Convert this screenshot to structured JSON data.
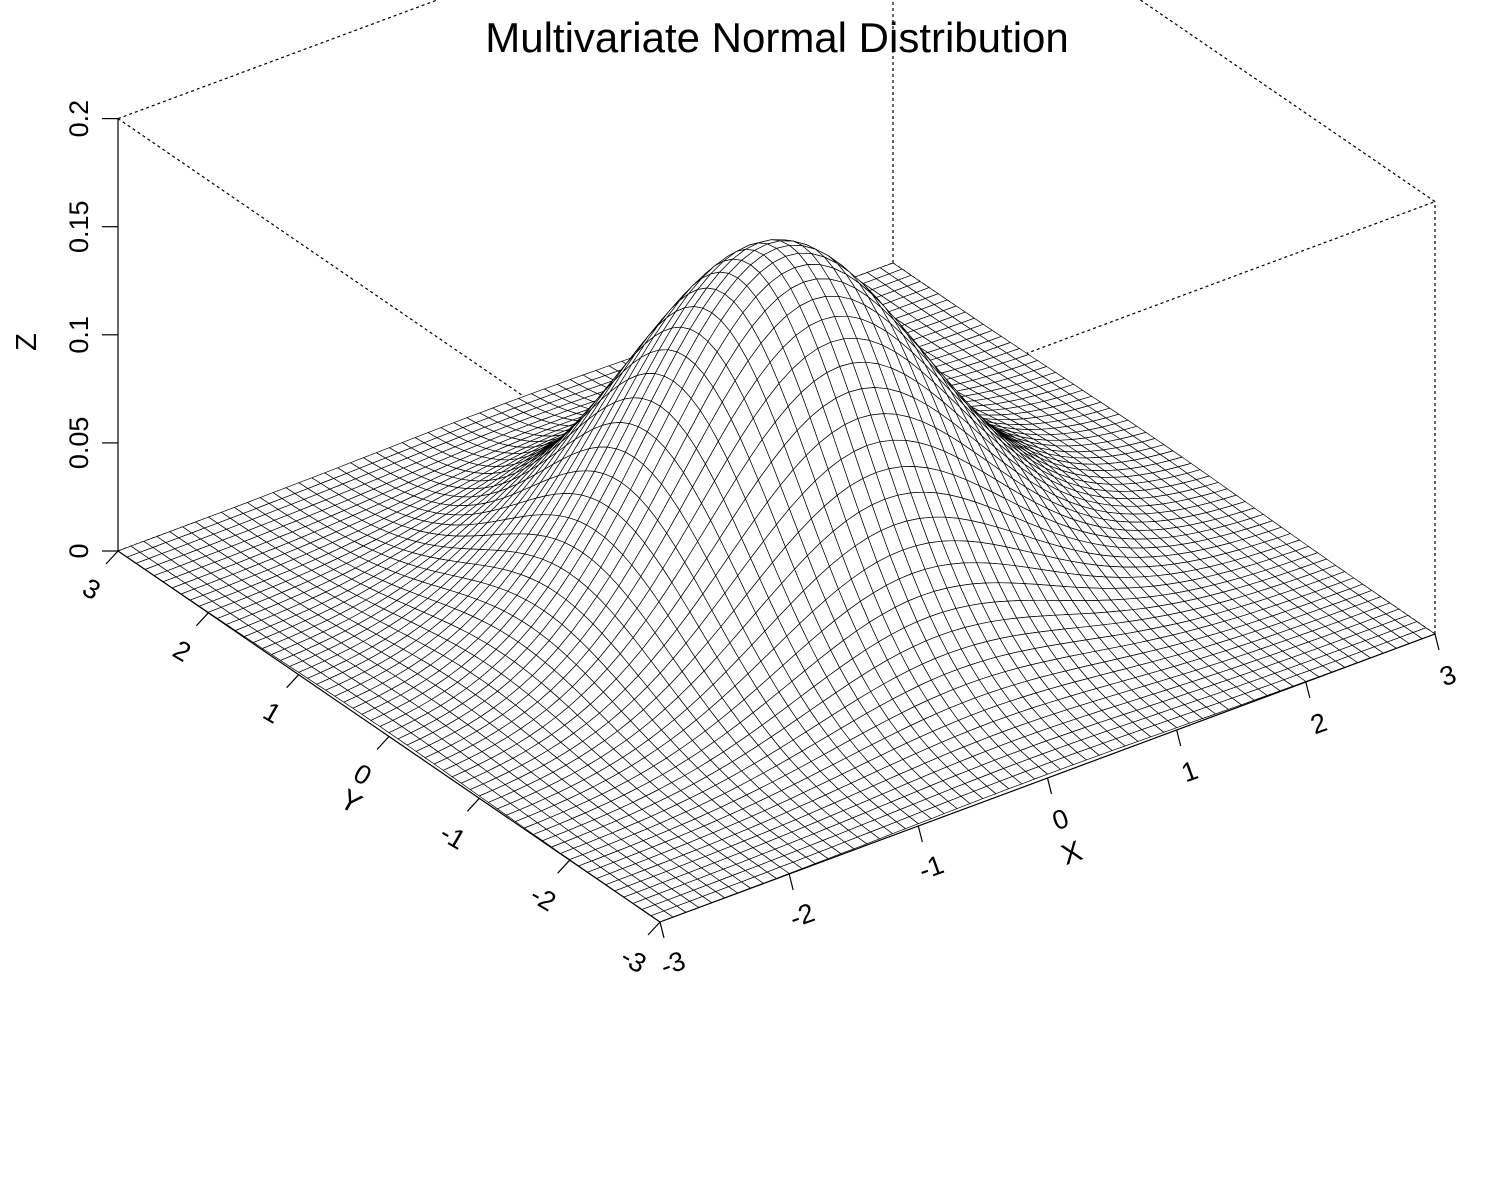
{
  "chart_data": {
    "type": "surface",
    "title": "Multivariate Normal Distribution",
    "xlabel": "X",
    "ylabel": "Y",
    "zlabel": "Z",
    "xlim": [
      -3,
      3
    ],
    "ylim": [
      -3,
      3
    ],
    "zlim": [
      0,
      0.2
    ],
    "x_ticks": [
      "-3",
      "-2",
      "-1",
      "0",
      "1",
      "2",
      "3"
    ],
    "y_ticks": [
      "-3",
      "-2",
      "-1",
      "0",
      "1",
      "2",
      "3"
    ],
    "z_ticks": [
      "0",
      "0.05",
      "0.1",
      "0.15",
      "0.2"
    ],
    "z_tick_values": [
      0,
      0.05,
      0.1,
      0.15,
      0.2
    ],
    "distribution": {
      "mean_x": 0,
      "mean_y": 0,
      "sd_x": 1,
      "sd_y": 1,
      "correlation": 0,
      "peak_density": 0.159
    },
    "grid_points_per_axis": 61,
    "box": true,
    "colors": {
      "surface_fill": "#ffffff",
      "mesh_line": "#000000",
      "box_line": "#000000"
    }
  }
}
